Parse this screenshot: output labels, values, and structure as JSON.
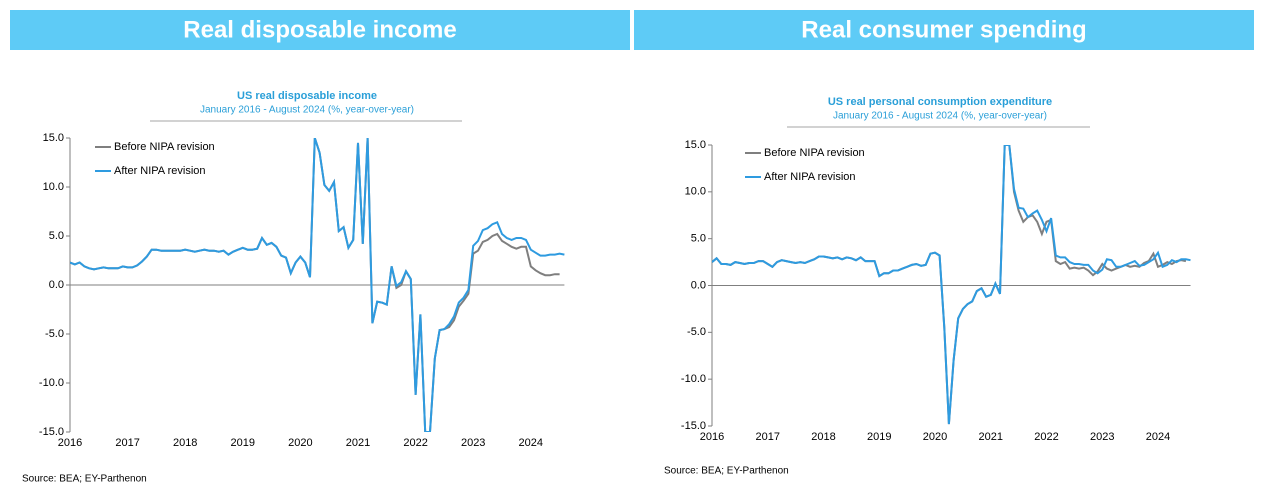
{
  "headers": [
    "Real disposable income",
    "Real consumer spending"
  ],
  "chart_data": [
    {
      "type": "line",
      "title": "US real disposable income",
      "subtitle": "January 2016 - August 2024 (%, year-over-year)",
      "source": "Source: BEA; EY-Parthenon",
      "legend": "upper left",
      "categories": [
        "2016",
        null,
        null,
        null,
        null,
        null,
        null,
        null,
        null,
        null,
        null,
        null,
        "2017",
        null,
        null,
        null,
        null,
        null,
        null,
        null,
        null,
        null,
        null,
        null,
        "2018",
        null,
        null,
        null,
        null,
        null,
        null,
        null,
        null,
        null,
        null,
        null,
        "2019",
        null,
        null,
        null,
        null,
        null,
        null,
        null,
        null,
        null,
        null,
        null,
        "2020",
        null,
        null,
        null,
        null,
        null,
        null,
        null,
        null,
        null,
        null,
        null,
        "2021",
        null,
        null,
        null,
        null,
        null,
        null,
        null,
        null,
        null,
        null,
        null,
        "2022",
        null,
        null,
        null,
        null,
        null,
        null,
        null,
        null,
        null,
        null,
        null,
        "2023",
        null,
        null,
        null,
        null,
        null,
        null,
        null,
        null,
        null,
        null,
        null,
        "2024",
        null,
        null,
        null,
        null,
        null,
        null,
        null
      ],
      "series": [
        {
          "name": "Before NIPA revision",
          "color": "#7f7f7f",
          "values": [
            2.3,
            2.1,
            2.3,
            1.9,
            1.7,
            1.6,
            1.7,
            1.8,
            1.7,
            1.7,
            1.7,
            1.9,
            1.8,
            1.8,
            2.0,
            2.4,
            2.9,
            3.6,
            3.6,
            3.5,
            3.5,
            3.5,
            3.5,
            3.5,
            3.6,
            3.5,
            3.4,
            3.5,
            3.6,
            3.5,
            3.5,
            3.4,
            3.5,
            3.1,
            3.4,
            3.6,
            3.8,
            3.6,
            3.6,
            3.7,
            4.8,
            4.1,
            4.3,
            3.9,
            3.0,
            2.8,
            1.2,
            2.3,
            2.9,
            2.3,
            0.8,
            15,
            13.5,
            10.2,
            9.6,
            10.5,
            5.5,
            5.9,
            3.8,
            4.6,
            14.5,
            4.2,
            15,
            -3.9,
            -1.7,
            -1.8,
            -2.0,
            1.9,
            -0.3,
            0.0,
            1.4,
            0.6,
            -11.2,
            -3.0,
            -15,
            -15,
            -7.5,
            -4.6,
            -4.5,
            -4.3,
            -3.6,
            -2.2,
            -1.6,
            -0.9,
            3.2,
            3.5,
            4.4,
            4.6,
            5.0,
            5.2,
            4.5,
            4.2,
            3.9,
            3.7,
            3.9,
            3.9,
            1.9,
            1.5,
            1.2,
            1.0,
            1.0,
            1.1,
            1.1,
            null
          ]
        },
        {
          "name": "After NIPA revision",
          "color": "#2e9be0",
          "values": [
            2.3,
            2.1,
            2.3,
            1.9,
            1.7,
            1.6,
            1.7,
            1.8,
            1.7,
            1.7,
            1.7,
            1.9,
            1.8,
            1.8,
            2.0,
            2.4,
            2.9,
            3.6,
            3.6,
            3.5,
            3.5,
            3.5,
            3.5,
            3.5,
            3.6,
            3.5,
            3.4,
            3.5,
            3.6,
            3.5,
            3.5,
            3.4,
            3.5,
            3.1,
            3.4,
            3.6,
            3.8,
            3.6,
            3.6,
            3.7,
            4.8,
            4.1,
            4.3,
            3.9,
            3.0,
            2.8,
            1.2,
            2.3,
            2.9,
            2.3,
            0.8,
            15,
            13.5,
            10.2,
            9.6,
            10.5,
            5.5,
            5.9,
            3.8,
            4.6,
            14.5,
            4.2,
            15,
            -3.9,
            -1.7,
            -1.8,
            -2.0,
            1.9,
            -0.1,
            0.3,
            1.4,
            0.6,
            -11.2,
            -3.0,
            -15,
            -15,
            -7.5,
            -4.6,
            -4.5,
            -4.0,
            -3.2,
            -1.8,
            -1.3,
            -0.5,
            4.0,
            4.5,
            5.6,
            5.8,
            6.2,
            6.4,
            5.2,
            4.8,
            4.6,
            4.8,
            4.8,
            4.6,
            3.6,
            3.3,
            3.0,
            3.0,
            3.1,
            3.1,
            3.2,
            3.1
          ]
        }
      ],
      "ylim": [
        -15,
        15
      ],
      "yticks": [
        {
          "value": 15,
          "label": "15.0"
        },
        {
          "value": 10,
          "label": "10.0"
        },
        {
          "value": 5,
          "label": "5.0"
        },
        {
          "value": 0,
          "label": "0.0"
        },
        {
          "value": -5,
          "label": "-5.0"
        },
        {
          "value": -10,
          "label": "-10.0"
        },
        {
          "value": -15,
          "label": "-15.0"
        }
      ]
    },
    {
      "type": "line",
      "title": "US real personal consumption expenditure",
      "subtitle": "January 2016 - August 2024 (%, year-over-year)",
      "source": "Source: BEA; EY-Parthenon",
      "legend": "upper left",
      "categories": [
        "2016",
        null,
        null,
        null,
        null,
        null,
        null,
        null,
        null,
        null,
        null,
        null,
        "2017",
        null,
        null,
        null,
        null,
        null,
        null,
        null,
        null,
        null,
        null,
        null,
        "2018",
        null,
        null,
        null,
        null,
        null,
        null,
        null,
        null,
        null,
        null,
        null,
        "2019",
        null,
        null,
        null,
        null,
        null,
        null,
        null,
        null,
        null,
        null,
        null,
        "2020",
        null,
        null,
        null,
        null,
        null,
        null,
        null,
        null,
        null,
        null,
        null,
        "2021",
        null,
        null,
        null,
        null,
        null,
        null,
        null,
        null,
        null,
        null,
        null,
        "2022",
        null,
        null,
        null,
        null,
        null,
        null,
        null,
        null,
        null,
        null,
        null,
        "2023",
        null,
        null,
        null,
        null,
        null,
        null,
        null,
        null,
        null,
        null,
        null,
        "2024",
        null,
        null,
        null,
        null,
        null,
        null,
        null
      ],
      "series": [
        {
          "name": "Before NIPA revision",
          "color": "#7f7f7f",
          "values": [
            2.5,
            2.9,
            2.3,
            2.3,
            2.2,
            2.5,
            2.4,
            2.3,
            2.4,
            2.4,
            2.6,
            2.6,
            2.3,
            2.0,
            2.5,
            2.7,
            2.6,
            2.5,
            2.4,
            2.5,
            2.4,
            2.6,
            2.8,
            3.1,
            3.1,
            3.0,
            2.9,
            3.0,
            2.8,
            3.0,
            2.9,
            2.7,
            3.0,
            2.6,
            2.6,
            2.6,
            1.0,
            1.3,
            1.3,
            1.6,
            1.6,
            1.8,
            2.0,
            2.2,
            2.3,
            2.1,
            2.2,
            3.4,
            3.5,
            3.2,
            -4.5,
            -14.8,
            -8.0,
            -3.5,
            -2.5,
            -2.0,
            -1.7,
            -0.6,
            -0.3,
            -1.2,
            -1.0,
            0.2,
            -0.9,
            15,
            15,
            10.0,
            8.0,
            6.8,
            7.3,
            7.5,
            6.8,
            5.5,
            6.8,
            7.0,
            2.6,
            2.3,
            2.5,
            1.8,
            1.9,
            1.8,
            1.9,
            1.6,
            1.1,
            1.5,
            2.3,
            1.8,
            1.6,
            1.8,
            2.0,
            2.2,
            2.0,
            2.1,
            2.0,
            2.4,
            2.6,
            3.4,
            2.0,
            2.2,
            2.5,
            2.3,
            2.6,
            2.7,
            2.6,
            null
          ]
        },
        {
          "name": "After NIPA revision",
          "color": "#2e9be0",
          "values": [
            2.5,
            2.9,
            2.3,
            2.3,
            2.2,
            2.5,
            2.4,
            2.3,
            2.4,
            2.4,
            2.6,
            2.6,
            2.3,
            2.0,
            2.5,
            2.7,
            2.6,
            2.5,
            2.4,
            2.5,
            2.4,
            2.6,
            2.8,
            3.1,
            3.1,
            3.0,
            2.9,
            3.0,
            2.8,
            3.0,
            2.9,
            2.7,
            3.0,
            2.6,
            2.6,
            2.6,
            1.0,
            1.3,
            1.3,
            1.6,
            1.6,
            1.8,
            2.0,
            2.2,
            2.3,
            2.1,
            2.2,
            3.4,
            3.5,
            3.2,
            -4.5,
            -14.8,
            -8.0,
            -3.5,
            -2.5,
            -2.0,
            -1.7,
            -0.6,
            -0.3,
            -1.2,
            -1.0,
            0.2,
            -0.9,
            15,
            15,
            10.3,
            8.3,
            8.2,
            7.3,
            7.7,
            8.0,
            7.0,
            5.8,
            7.2,
            3.2,
            3.0,
            3.0,
            2.5,
            2.3,
            2.3,
            2.2,
            2.2,
            1.6,
            1.3,
            1.7,
            2.8,
            2.7,
            2.0,
            2.0,
            2.2,
            2.4,
            2.6,
            2.1,
            2.2,
            2.5,
            2.8,
            3.5,
            2.0,
            2.2,
            2.7,
            2.5,
            2.8,
            2.8,
            2.7
          ]
        }
      ],
      "ylim": [
        -15,
        15
      ],
      "yticks": [
        {
          "value": 15,
          "label": "15.0"
        },
        {
          "value": 10,
          "label": "10.0"
        },
        {
          "value": 5,
          "label": "5.0"
        },
        {
          "value": 0,
          "label": "0.0"
        },
        {
          "value": -5,
          "label": "-5.0"
        },
        {
          "value": -10,
          "label": "-10.0"
        },
        {
          "value": -15,
          "label": "-15.0"
        }
      ]
    }
  ]
}
